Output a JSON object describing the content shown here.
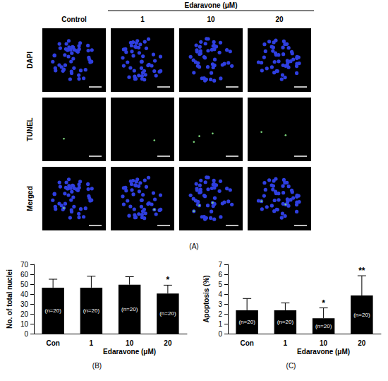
{
  "panel_a": {
    "header": "Edaravone (μM)",
    "columns": [
      "Control",
      "1",
      "10",
      "20"
    ],
    "rows": [
      "DAPI",
      "TUNEL",
      "Merged"
    ],
    "label": "(A)"
  },
  "chart_data": [
    {
      "type": "bar",
      "categories": [
        "Con",
        "1",
        "10",
        "20"
      ],
      "values": [
        46.5,
        46.5,
        49.5,
        40.5
      ],
      "errors": [
        8.5,
        11.5,
        8,
        8.5
      ],
      "n_labels": [
        "(n=20)",
        "(n=20)",
        "(n=20)",
        "(n=20)"
      ],
      "significance": [
        null,
        null,
        null,
        "*"
      ],
      "y_label": "No. of total nuclei",
      "x_label": "Edaravone (μM)",
      "annotations": [
        "(B)"
      ],
      "color": "#000000",
      "ylim": [
        0,
        70
      ],
      "yticks": [
        0,
        10,
        20,
        30,
        40,
        50,
        60,
        70
      ],
      "grid": false
    },
    {
      "type": "bar",
      "categories": [
        "Con",
        "1",
        "10",
        "20"
      ],
      "values": [
        2.35,
        2.35,
        1.55,
        3.85
      ],
      "errors": [
        1.2,
        0.75,
        1.05,
        2.0
      ],
      "n_labels": [
        "(n=20)",
        "(n=20)",
        "(n=20)",
        "(n=20)"
      ],
      "significance": [
        null,
        null,
        "*",
        "**"
      ],
      "y_label": "Apoptosis (%)",
      "x_label": "Edaravone (μM)",
      "annotations": [
        "(C)"
      ],
      "color": "#000000",
      "ylim": [
        0,
        7
      ],
      "yticks": [
        0,
        1,
        2,
        3,
        4,
        5,
        6,
        7
      ],
      "grid": false
    }
  ]
}
